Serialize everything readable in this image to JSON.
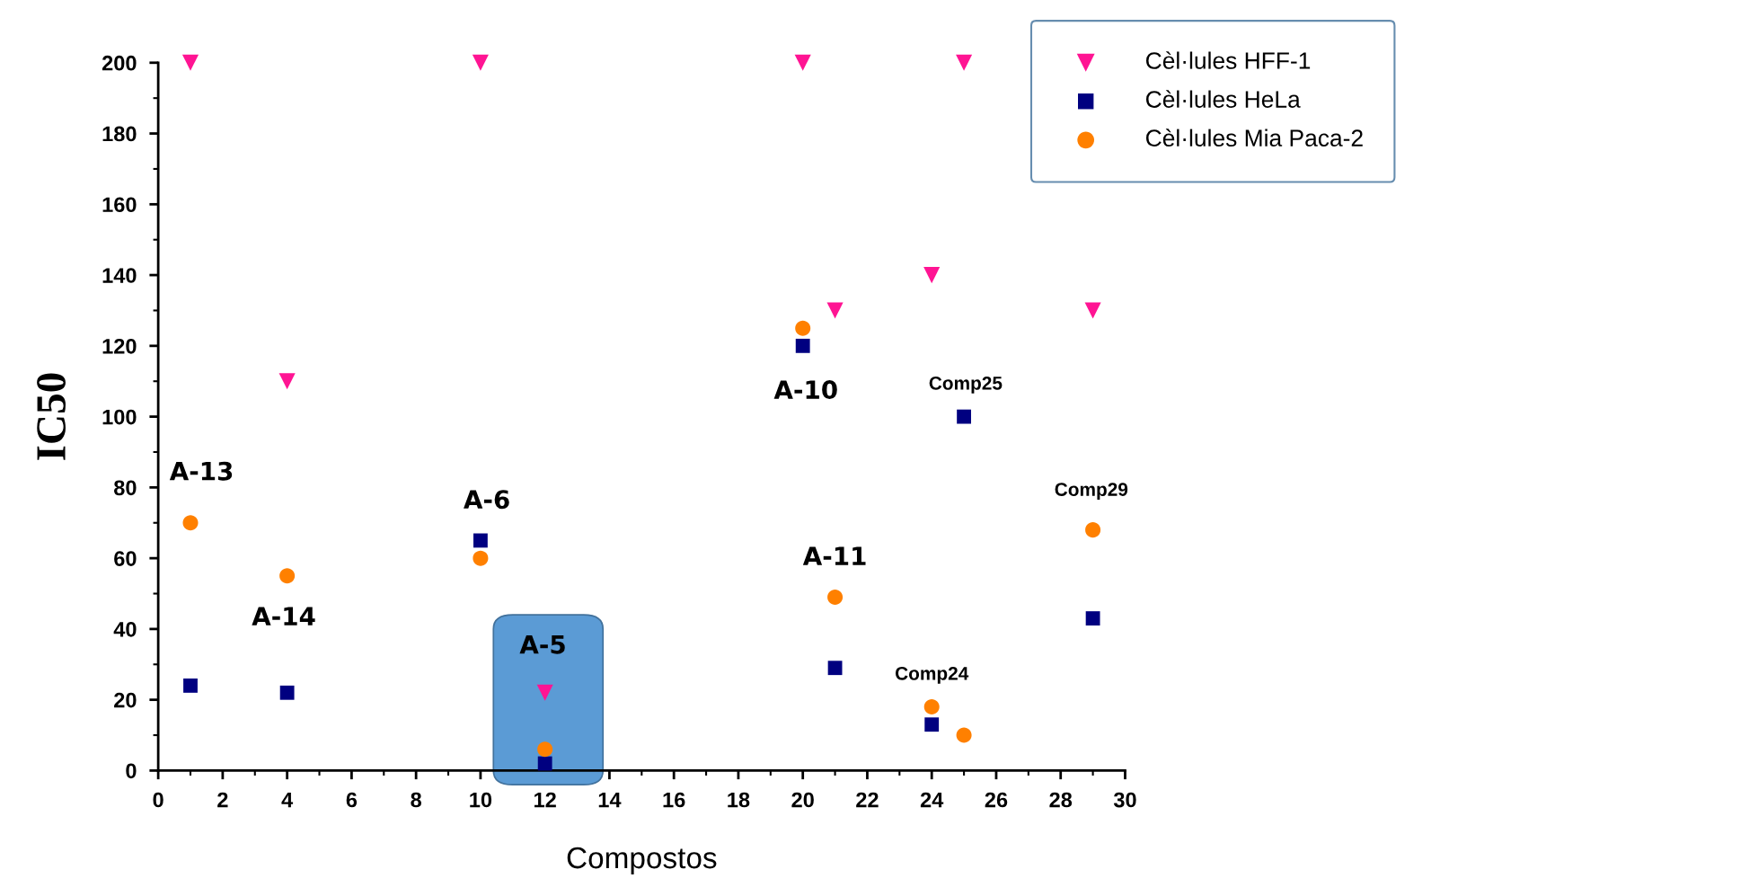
{
  "chart_data": {
    "type": "scatter",
    "xlabel": "Compostos",
    "ylabel": "IC50",
    "x": [
      1,
      4,
      10,
      12,
      20,
      21,
      24,
      25,
      29
    ],
    "series": [
      {
        "name": "Cèl·lules HFF-1",
        "color": "#ff1493",
        "marker": "triangle",
        "values": [
          200,
          110,
          200,
          22,
          200,
          130,
          140,
          200,
          130
        ]
      },
      {
        "name": "Cèl·lules HeLa",
        "color": "#000080",
        "marker": "square",
        "values": [
          24,
          22,
          65,
          2,
          120,
          29,
          13,
          100,
          43
        ]
      },
      {
        "name": "Cèl·lules Mia Paca-2",
        "color": "#ff8000",
        "marker": "circle",
        "values": [
          70,
          55,
          60,
          6,
          125,
          49,
          18,
          10,
          68
        ]
      }
    ],
    "annotations": [
      "A-13",
      "A-14",
      "A-6",
      "A-5",
      "A-10",
      "A-11",
      "Comp24",
      "Comp25",
      "Comp29"
    ],
    "bands": [
      {
        "axis": "x",
        "from": 10.4,
        "to": 13.8,
        "color": "#5b9bd5"
      }
    ],
    "xlim": [
      0,
      30
    ],
    "xticks": [
      0,
      2,
      4,
      6,
      8,
      10,
      12,
      14,
      16,
      18,
      20,
      22,
      24,
      26,
      28,
      30
    ],
    "ylim": [
      0,
      200
    ],
    "yticks": [
      0,
      20,
      40,
      60,
      80,
      100,
      120,
      140,
      160,
      180,
      200
    ],
    "grid": false,
    "legend": "top right"
  }
}
